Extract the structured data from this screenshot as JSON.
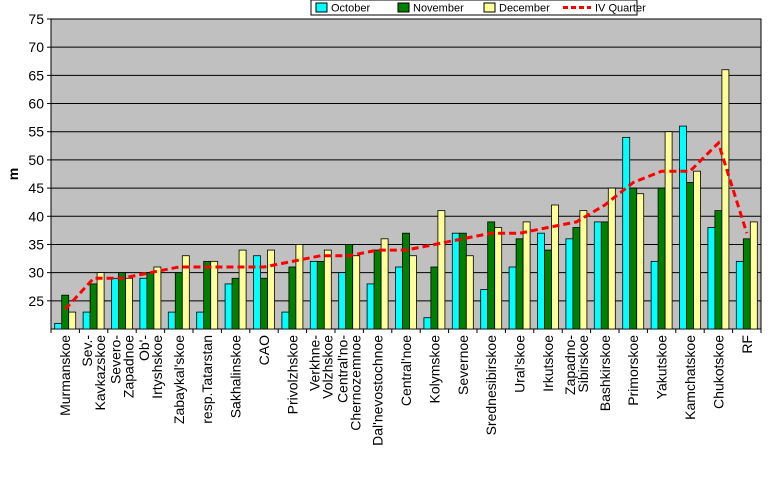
{
  "chart_data": {
    "type": "bar",
    "ylabel": "m",
    "ylim": [
      20,
      75
    ],
    "yticks": [
      25,
      30,
      35,
      40,
      45,
      50,
      55,
      60,
      65,
      70,
      75
    ],
    "grid": true,
    "legend_position": "top-right",
    "categories": [
      "Murmanskoe",
      "Sev.-Kavkazskoe",
      "Severo-Zapadnoe",
      "Ob'-Irtyshskoe",
      "Zabaykal'skoe",
      "resp.Tatarstan",
      "Sakhalinskoe",
      "CAO",
      "Privolzhskoe",
      "Verkhne-Volzhskoe",
      "Central'no-Chernozemnoe",
      "Dal'nevostochnoe",
      "Central'noe",
      "Kolymskoe",
      "Severnoe",
      "Srednesibirskoe",
      "Ural'skoe",
      "Irkutskoe",
      "Zapadno-Sibirskoe",
      "Bashkirskoe",
      "Primorskoe",
      "Yakutskoe",
      "Kamchatskoe",
      "Chukotskoe",
      "RF"
    ],
    "category_lines": [
      [
        "Murmanskoe"
      ],
      [
        "Sev.-",
        "Kavkazskoe"
      ],
      [
        "Severo-",
        "Zapadnoe"
      ],
      [
        "Ob'-",
        "Irtyshskoe"
      ],
      [
        "Zabaykal'skoe"
      ],
      [
        "resp.Tatarstan"
      ],
      [
        "Sakhalinskoe"
      ],
      [
        "CAO"
      ],
      [
        "Privolzhskoe"
      ],
      [
        "Verkhne-",
        "Volzhskoe"
      ],
      [
        "Central'no-",
        "Chernozemnoe"
      ],
      [
        "Dal'nevostochnoe"
      ],
      [
        "Central'noe"
      ],
      [
        "Kolymskoe"
      ],
      [
        "Severnoe"
      ],
      [
        "Srednesibirskoe"
      ],
      [
        "Ural'skoe"
      ],
      [
        "Irkutskoe"
      ],
      [
        "Zapadno-",
        "Sibirskoe"
      ],
      [
        "Bashkirskoe"
      ],
      [
        "Primorskoe"
      ],
      [
        "Yakutskoe"
      ],
      [
        "Kamchatskoe"
      ],
      [
        "Chukotskoe"
      ],
      [
        "RF"
      ]
    ],
    "series": [
      {
        "name": "October",
        "kind": "bar",
        "color": "#00ffff",
        "values": [
          21,
          23,
          29,
          29,
          23,
          23,
          28,
          33,
          23,
          32,
          30,
          28,
          31,
          22,
          37,
          27,
          31,
          37,
          36,
          39,
          54,
          32,
          56,
          38,
          32
        ]
      },
      {
        "name": "November",
        "kind": "bar",
        "color": "#008000",
        "values": [
          26,
          28,
          30,
          30,
          30,
          32,
          29,
          29,
          31,
          32,
          35,
          34,
          37,
          31,
          37,
          39,
          36,
          34,
          38,
          39,
          45,
          45,
          46,
          41,
          36
        ]
      },
      {
        "name": "December",
        "kind": "bar",
        "color": "#ffff99",
        "values": [
          23,
          30,
          29,
          31,
          33,
          32,
          34,
          34,
          35,
          34,
          33,
          36,
          33,
          41,
          33,
          38,
          39,
          42,
          41,
          45,
          44,
          55,
          48,
          66,
          39
        ]
      },
      {
        "name": "IV Quarter",
        "kind": "line",
        "color": "#ff0000",
        "values": [
          23.5,
          29,
          29,
          30,
          31,
          31,
          31,
          31,
          32,
          33,
          33,
          34,
          34,
          35,
          36,
          37,
          37,
          38,
          39,
          42,
          46,
          48,
          48,
          53,
          37
        ]
      }
    ]
  }
}
